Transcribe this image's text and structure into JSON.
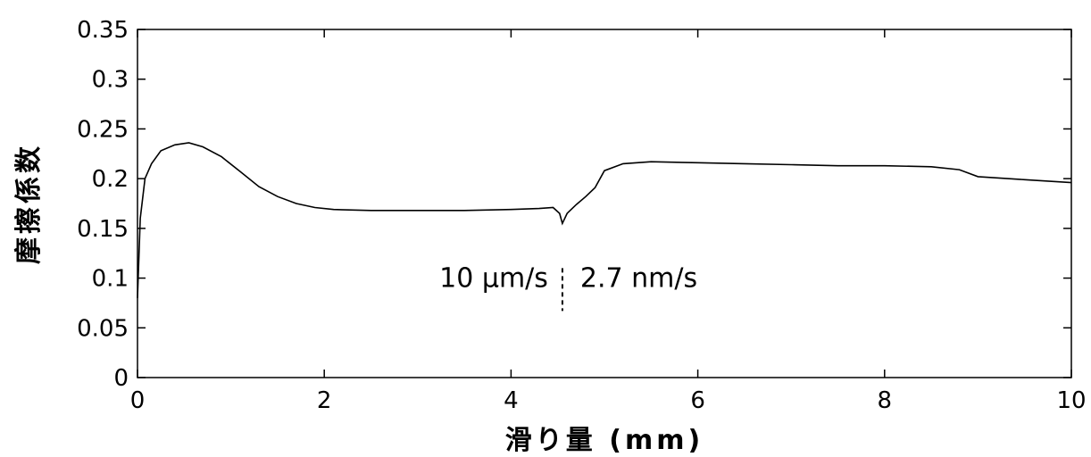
{
  "chart_data": {
    "type": "line",
    "xlabel": "滑り量 (mm)",
    "ylabel": "摩擦係数",
    "xlim": [
      0,
      10
    ],
    "ylim": [
      0,
      0.35
    ],
    "x_ticks": [
      "0",
      "2",
      "4",
      "6",
      "8",
      "10"
    ],
    "y_ticks": [
      "0",
      "0.05",
      "0.1",
      "0.15",
      "0.2",
      "0.25",
      "0.3",
      "0.35"
    ],
    "grid": false,
    "series": [
      {
        "x": [
          0,
          0.03,
          0.08,
          0.15,
          0.25,
          0.4,
          0.55,
          0.7,
          0.9,
          1.1,
          1.3,
          1.5,
          1.7,
          1.9,
          2.1,
          2.5,
          3.0,
          3.5,
          4.0,
          4.3,
          4.45,
          4.52,
          4.55,
          4.6,
          4.7,
          4.8,
          4.9,
          5.0,
          5.2,
          5.5,
          6.0,
          6.5,
          7.0,
          7.5,
          8.0,
          8.5,
          8.8,
          9.0,
          9.5,
          10.0
        ],
        "y": [
          0.08,
          0.16,
          0.2,
          0.215,
          0.228,
          0.234,
          0.236,
          0.232,
          0.222,
          0.207,
          0.192,
          0.182,
          0.175,
          0.171,
          0.169,
          0.168,
          0.168,
          0.168,
          0.169,
          0.17,
          0.171,
          0.165,
          0.155,
          0.165,
          0.174,
          0.182,
          0.191,
          0.208,
          0.215,
          0.217,
          0.216,
          0.215,
          0.214,
          0.213,
          0.213,
          0.212,
          0.209,
          0.202,
          0.199,
          0.196
        ]
      }
    ],
    "annotations": {
      "left": "10 μm/s",
      "right": "2.7 nm/s",
      "divider_x": 4.55
    }
  }
}
